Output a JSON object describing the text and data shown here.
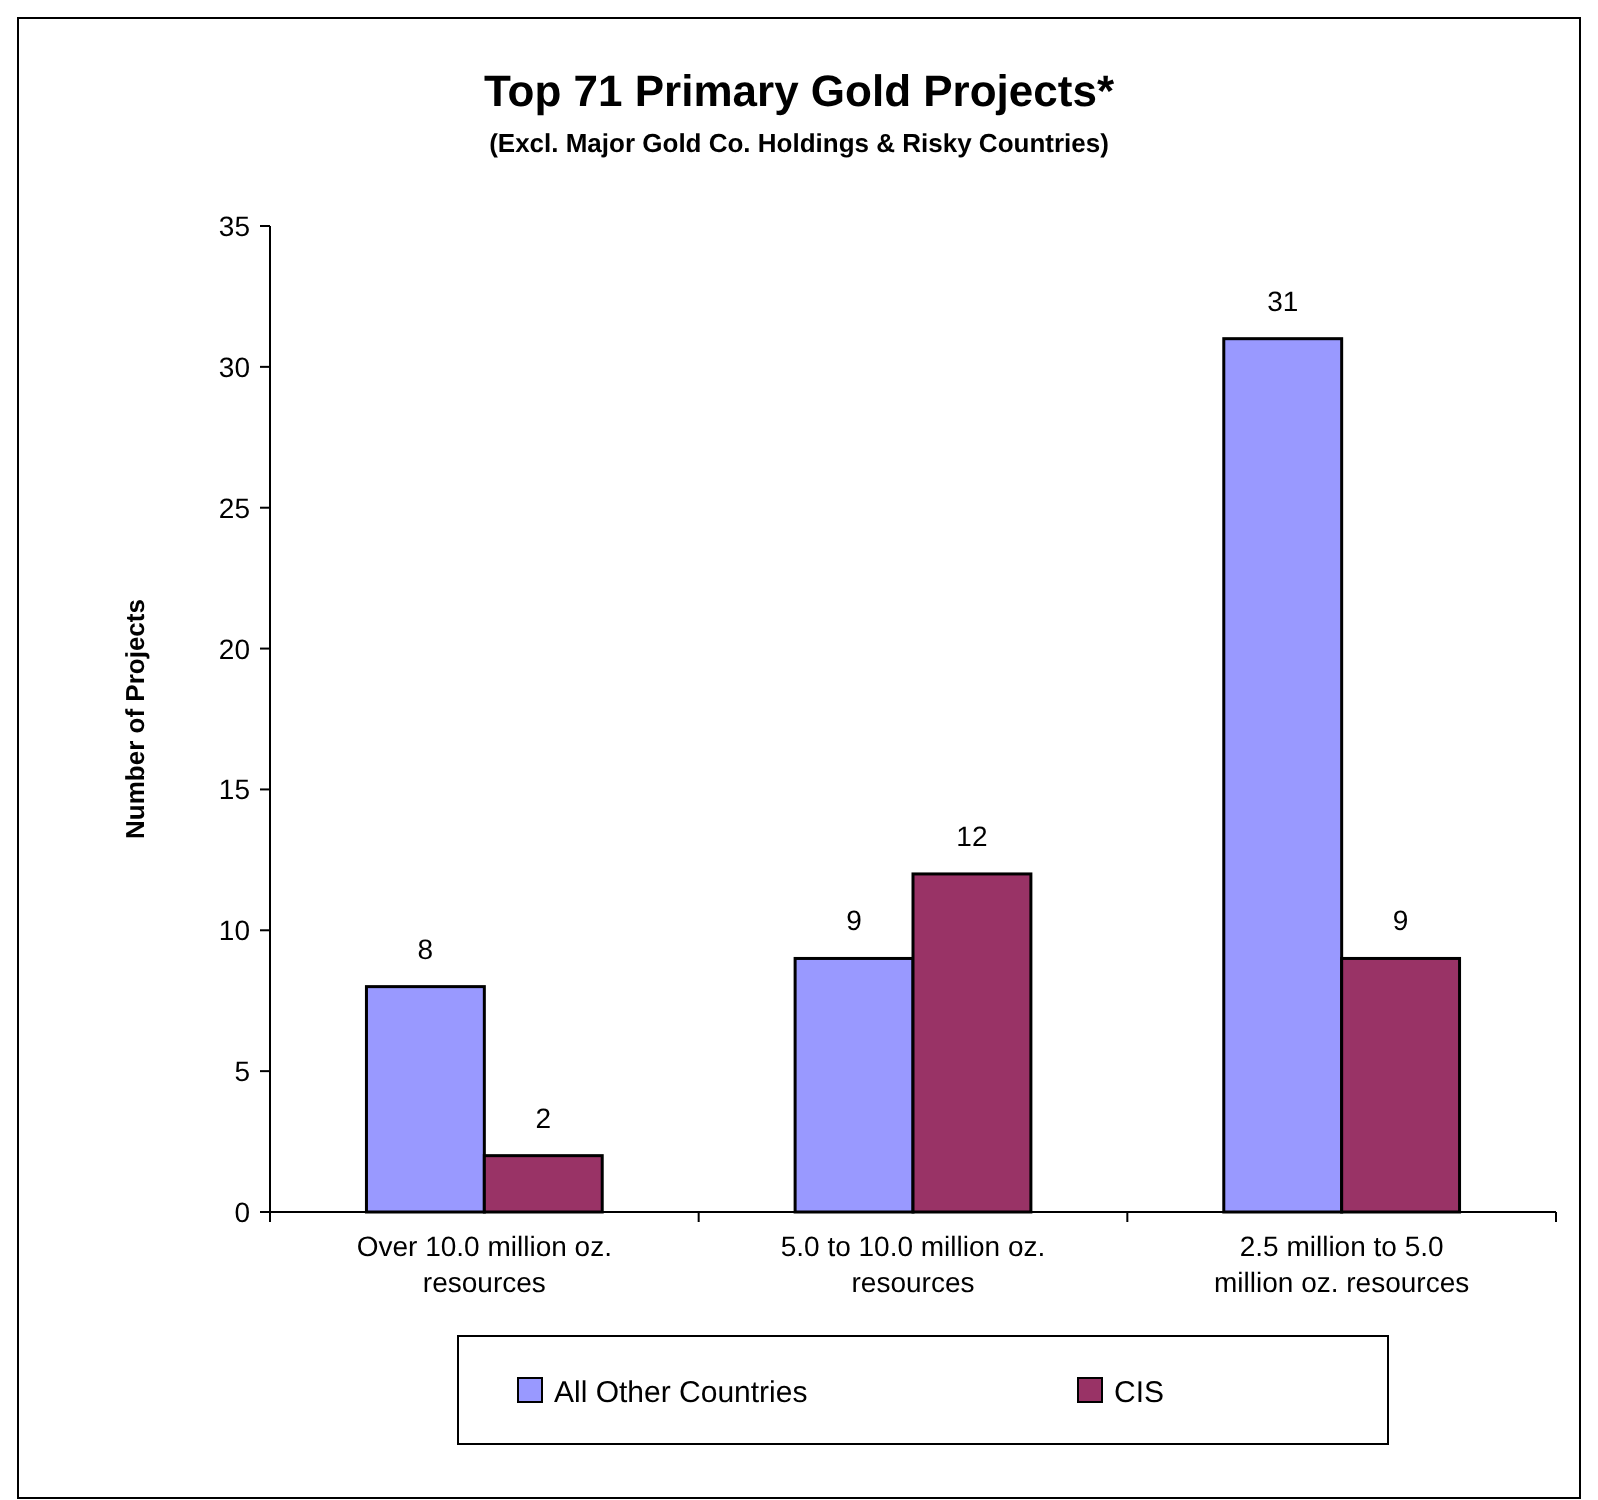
{
  "chart_data": {
    "type": "bar",
    "title": "Top 71 Primary Gold Projects*",
    "subtitle": "(Excl. Major Gold Co. Holdings & Risky Countries)",
    "ylabel": "Number of Projects",
    "categories": [
      "Over 10.0 million oz. resources",
      "5.0 to 10.0 million oz. resources",
      "2.5 million to 5.0 million oz. resources"
    ],
    "series": [
      {
        "name": "All Other Countries",
        "color": "#9999ff",
        "values": [
          8,
          9,
          31
        ]
      },
      {
        "name": "CIS",
        "color": "#993366",
        "values": [
          2,
          12,
          9
        ]
      }
    ],
    "ylim": [
      0,
      35
    ],
    "yticks": [
      0,
      5,
      10,
      15,
      20,
      25,
      30,
      35
    ],
    "grid": false,
    "data_labels": true,
    "legend": "bottom"
  }
}
